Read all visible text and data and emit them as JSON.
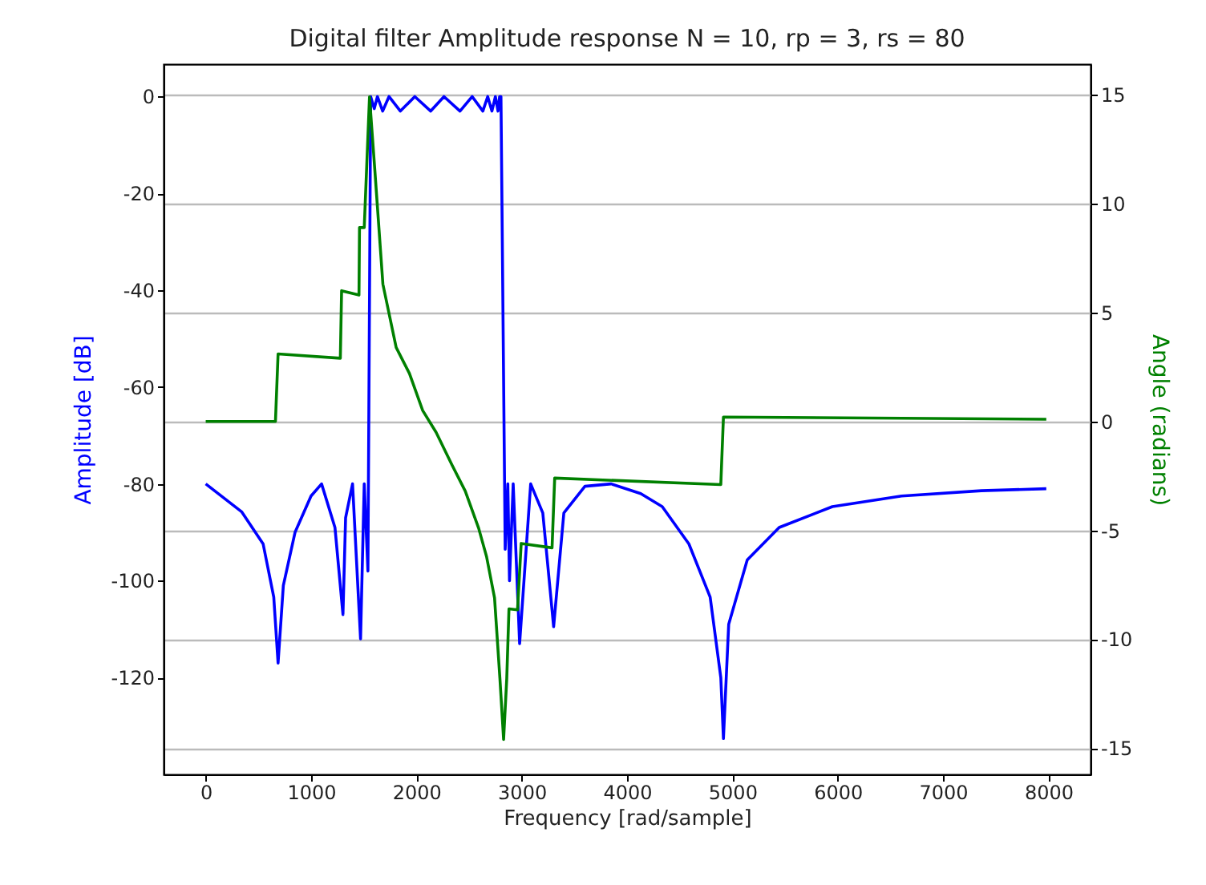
{
  "chart_data": {
    "type": "line",
    "title": "Digital filter Amplitude response N = 10, rp = 3, rs = 80",
    "xlabel": "Frequency [rad/sample]",
    "ylabel": "Amplitude [dB]",
    "y2label": "Angle (radians)",
    "xlim": [
      -400,
      8400
    ],
    "xticks": [
      0,
      1000,
      2000,
      3000,
      4000,
      5000,
      6000,
      7000,
      8000
    ],
    "ylim": [
      -140,
      6.7
    ],
    "yticks": [
      0,
      -20,
      -40,
      -60,
      -80,
      -100,
      -120
    ],
    "y2lim": [
      -16.2,
      16.4
    ],
    "y2ticks": [
      15,
      10,
      5,
      0,
      -5,
      -10,
      -15
    ],
    "grid": "y2",
    "line_style": "solid",
    "series": [
      {
        "color": "#0000ff",
        "axis": "y",
        "x": [
          0,
          343,
          545,
          646,
          687,
          737,
          848,
          1000,
          1100,
          1227,
          1303,
          1328,
          1394,
          1470,
          1505,
          1540,
          1566,
          1600,
          1630,
          1680,
          1740,
          1848,
          1985,
          2136,
          2262,
          2414,
          2530,
          2631,
          2677,
          2717,
          2750,
          2775,
          2790,
          2803,
          2843,
          2868,
          2884,
          2919,
          2980,
          3085,
          3200,
          3303,
          3400,
          3600,
          3850,
          4130,
          4334,
          4587,
          4789,
          4890,
          4915,
          4965,
          5141,
          5444,
          5949,
          6606,
          7364,
          7980
        ],
        "values": [
          -80,
          -85.8,
          -92.4,
          -103.4,
          -117,
          -101,
          -90,
          -82.5,
          -80,
          -89,
          -107,
          -87,
          -80,
          -112,
          -80,
          -98,
          0,
          -2.5,
          0,
          -3,
          0,
          -3,
          0,
          -3,
          0,
          -3,
          0,
          -3,
          0,
          -3,
          0,
          -3,
          0,
          0,
          -93.5,
          -80,
          -100,
          -80,
          -113,
          -80,
          -86,
          -109.5,
          -86,
          -80.5,
          -80,
          -82,
          -84.7,
          -92.4,
          -103.4,
          -120,
          -132.6,
          -109,
          -95.7,
          -89,
          -84.7,
          -82.5,
          -81.4,
          -81
        ]
      },
      {
        "color": "#008000",
        "axis": "y2",
        "x": [
          0,
          662,
          687,
          1278,
          1290,
          1455,
          1460,
          1505,
          1555,
          1606,
          1682,
          1808,
          1934,
          2060,
          2187,
          2338,
          2464,
          2591,
          2666,
          2742,
          2793,
          2828,
          2858,
          2879,
          2960,
          2995,
          3288,
          3313,
          4890,
          4915,
          7980
        ],
        "values": [
          0,
          0,
          3.1,
          2.9,
          6,
          5.8,
          8.9,
          8.9,
          14.9,
          11.5,
          6.3,
          3.4,
          2.2,
          0.5,
          -0.5,
          -2,
          -3.2,
          -4.9,
          -6.2,
          -8.1,
          -11.8,
          -14.6,
          -11.8,
          -8.6,
          -8.65,
          -5.6,
          -5.8,
          -2.6,
          -2.9,
          0.2,
          0.1
        ]
      }
    ]
  }
}
